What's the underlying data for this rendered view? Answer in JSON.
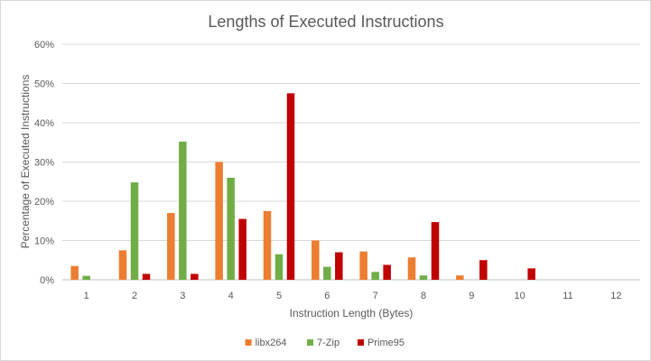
{
  "chart_data": {
    "type": "bar",
    "title": "Lengths of Executed Instructions",
    "xlabel": "Instruction Length (Bytes)",
    "ylabel": "Percentage of Executed Instructions",
    "categories": [
      "1",
      "2",
      "3",
      "4",
      "5",
      "6",
      "7",
      "8",
      "9",
      "10",
      "11",
      "12"
    ],
    "ylim": [
      0,
      60
    ],
    "yticks": [
      0,
      10,
      20,
      30,
      40,
      50,
      60
    ],
    "ytick_labels": [
      "0%",
      "10%",
      "20%",
      "30%",
      "40%",
      "50%",
      "60%"
    ],
    "grid": true,
    "legend_position": "bottom",
    "series": [
      {
        "name": "libx264",
        "color": "#ed7d31",
        "values": [
          3.5,
          7.5,
          17,
          30,
          17.5,
          10,
          7.2,
          5.7,
          1.1,
          0,
          0,
          0
        ]
      },
      {
        "name": "7-Zip",
        "color": "#70ad47",
        "values": [
          1.0,
          24.8,
          35.2,
          26,
          6.5,
          3.3,
          2.0,
          1.1,
          0,
          0,
          0,
          0
        ]
      },
      {
        "name": "Prime95",
        "color": "#c00000",
        "values": [
          0,
          1.5,
          1.5,
          15.5,
          47.5,
          7.0,
          3.8,
          14.7,
          5.0,
          2.9,
          0,
          0
        ]
      }
    ]
  }
}
